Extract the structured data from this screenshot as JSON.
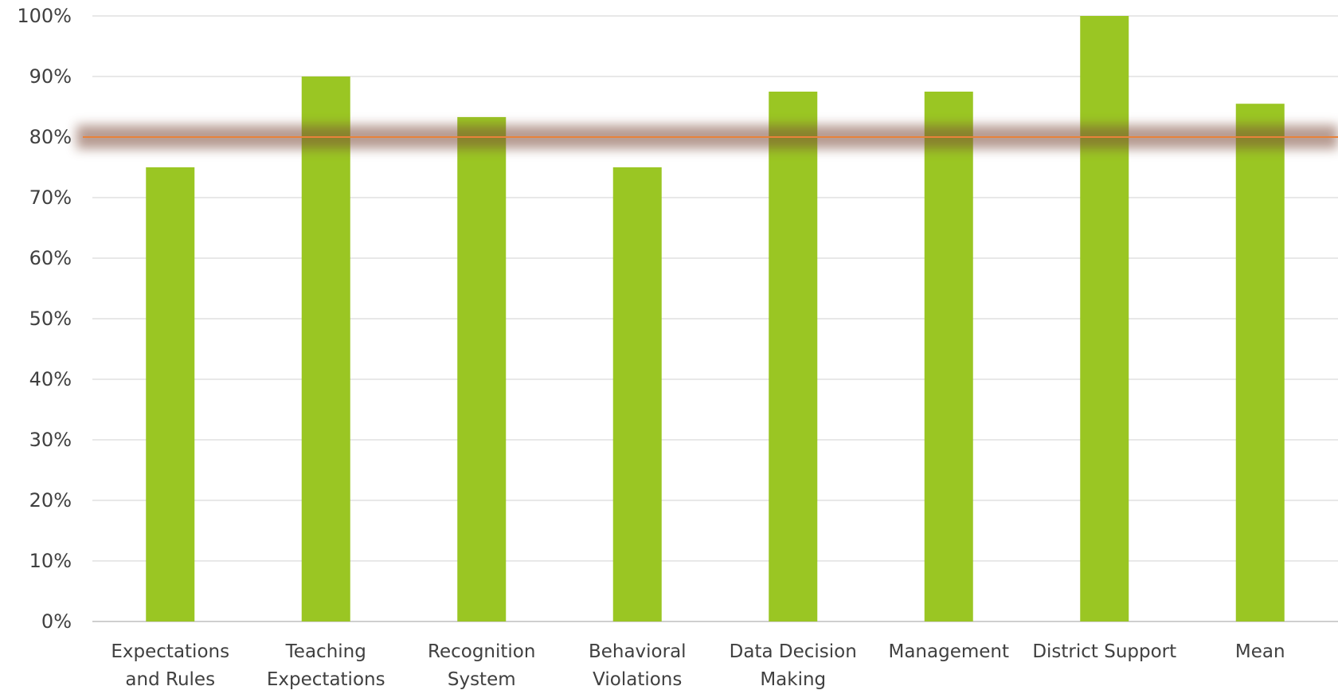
{
  "chart_data": {
    "type": "bar",
    "categories": [
      [
        "Expectations",
        "and Rules"
      ],
      [
        "Teaching",
        "Expectations"
      ],
      [
        "Recognition",
        "System"
      ],
      [
        "Behavioral",
        "Violations"
      ],
      [
        "Data Decision",
        "Making"
      ],
      [
        "Management"
      ],
      [
        "District Support"
      ],
      [
        "Mean"
      ]
    ],
    "values": [
      75,
      90,
      83.3,
      75,
      87.5,
      87.5,
      100,
      85.5
    ],
    "y_ticks": [
      "0%",
      "10%",
      "20%",
      "30%",
      "40%",
      "50%",
      "60%",
      "70%",
      "80%",
      "90%",
      "100%"
    ],
    "ylim": [
      0,
      100
    ],
    "grid": true,
    "reference_line": {
      "value": 80
    },
    "colors": {
      "bar": "#9AC623",
      "grid": "#D9D9D9",
      "axis": "#BFBFBF",
      "reference_line": "#E8823A",
      "reference_glow": "#7A4A38",
      "text": "#404040"
    }
  }
}
